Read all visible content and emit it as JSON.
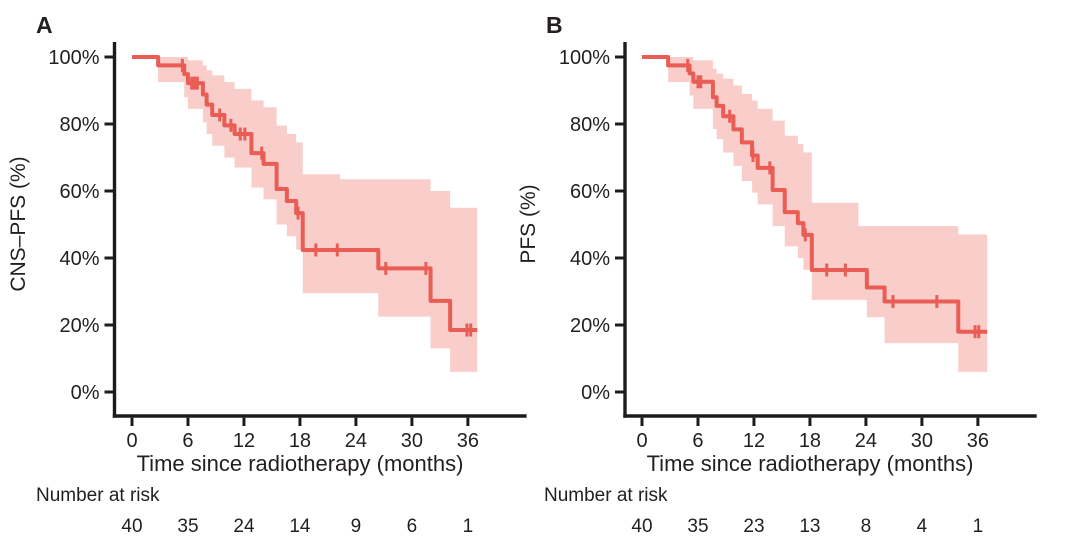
{
  "figure": {
    "background": "#ffffff",
    "description": "Two-panel Kaplan-Meier survival figure with 95% confidence bands"
  },
  "colors": {
    "curve": "#e95d55",
    "ci_band": "#f9cdc9",
    "axis": "#1c1c1c",
    "text": "#231f20"
  },
  "chart_data": [
    {
      "type": "line",
      "subtype": "kaplan-meier-step",
      "panel": "A",
      "ylabel": "CNS–PFS (%)",
      "xlabel": "Time since radiotherapy (months)",
      "x_tick_values": [
        0,
        6,
        12,
        18,
        24,
        30,
        36
      ],
      "x_tick_labels": [
        "0",
        "6",
        "12",
        "18",
        "24",
        "30",
        "36"
      ],
      "y_tick_values": [
        0,
        20,
        40,
        60,
        80,
        100
      ],
      "y_tick_labels": [
        "0%",
        "20%",
        "40%",
        "60%",
        "80%",
        "100%"
      ],
      "xlim": [
        0,
        42
      ],
      "ylim": [
        0,
        100
      ],
      "grid": false,
      "legend": "none",
      "steps": [
        [
          0,
          100
        ],
        [
          2.8,
          97.5
        ],
        [
          5.6,
          94.9
        ],
        [
          6.0,
          92.2
        ],
        [
          7.6,
          88.8
        ],
        [
          8.0,
          85.8
        ],
        [
          8.6,
          82.7
        ],
        [
          9.9,
          79.6
        ],
        [
          11.0,
          77.0
        ],
        [
          12.8,
          71.3
        ],
        [
          14.1,
          68.1
        ],
        [
          15.5,
          60.6
        ],
        [
          16.6,
          57.0
        ],
        [
          17.6,
          53.4
        ],
        [
          18.3,
          42.4
        ],
        [
          26.4,
          36.9
        ],
        [
          32.0,
          27.2
        ],
        [
          34.1,
          18.5
        ]
      ],
      "end_time": 37.0,
      "censors": [
        [
          5.4,
          97.5
        ],
        [
          6.4,
          92.2
        ],
        [
          6.7,
          92.2
        ],
        [
          7.0,
          92.2
        ],
        [
          9.4,
          82.7
        ],
        [
          10.6,
          79.6
        ],
        [
          11.6,
          77.0
        ],
        [
          12.1,
          77.0
        ],
        [
          13.9,
          71.3
        ],
        [
          17.8,
          53.4
        ],
        [
          19.7,
          42.4
        ],
        [
          22.0,
          42.4
        ],
        [
          27.2,
          36.9
        ],
        [
          31.5,
          36.9
        ],
        [
          35.9,
          18.5
        ],
        [
          36.3,
          18.5
        ]
      ],
      "ci": [
        [
          2.8,
          92.5,
          100
        ],
        [
          5.6,
          88.0,
          100
        ],
        [
          6.0,
          84.5,
          99.0
        ],
        [
          7.6,
          80.5,
          97.5
        ],
        [
          8.0,
          77.0,
          96.0
        ],
        [
          8.6,
          73.5,
          94.5
        ],
        [
          9.9,
          70.0,
          92.5
        ],
        [
          11.0,
          67.0,
          90.5
        ],
        [
          12.8,
          61.0,
          87.0
        ],
        [
          14.1,
          57.5,
          85.0
        ],
        [
          15.5,
          50.0,
          79.5
        ],
        [
          16.6,
          46.5,
          77.0
        ],
        [
          17.6,
          42.5,
          74.5
        ],
        [
          18.3,
          29.5,
          65.0
        ],
        [
          22.3,
          29.5,
          63.5
        ],
        [
          26.4,
          22.5,
          63.5
        ],
        [
          32.0,
          13.0,
          60.0
        ],
        [
          34.1,
          6.0,
          55.0
        ]
      ],
      "number_at_risk": {
        "label": "Number at risk",
        "times": [
          0,
          6,
          12,
          18,
          24,
          30,
          36
        ],
        "values": [
          "40",
          "35",
          "24",
          "14",
          "9",
          "6",
          "1"
        ]
      }
    },
    {
      "type": "line",
      "subtype": "kaplan-meier-step",
      "panel": "B",
      "ylabel": "PFS (%)",
      "xlabel": "Time since radiotherapy (months)",
      "x_tick_values": [
        0,
        6,
        12,
        18,
        24,
        30,
        36
      ],
      "x_tick_labels": [
        "0",
        "6",
        "12",
        "18",
        "24",
        "30",
        "36"
      ],
      "y_tick_values": [
        0,
        20,
        40,
        60,
        80,
        100
      ],
      "y_tick_labels": [
        "0%",
        "20%",
        "40%",
        "60%",
        "80%",
        "100%"
      ],
      "xlim": [
        0,
        42
      ],
      "ylim": [
        0,
        100
      ],
      "grid": false,
      "legend": "none",
      "steps": [
        [
          0,
          100
        ],
        [
          2.8,
          97.5
        ],
        [
          5.1,
          95.1
        ],
        [
          5.5,
          92.6
        ],
        [
          7.6,
          88.0
        ],
        [
          8.0,
          85.4
        ],
        [
          8.7,
          82.3
        ],
        [
          9.8,
          78.4
        ],
        [
          10.7,
          74.5
        ],
        [
          11.8,
          70.6
        ],
        [
          12.4,
          66.9
        ],
        [
          14.0,
          60.3
        ],
        [
          15.3,
          53.7
        ],
        [
          16.7,
          50.4
        ],
        [
          17.3,
          46.9
        ],
        [
          18.2,
          36.4
        ],
        [
          24.1,
          31.2
        ],
        [
          26.0,
          27.0
        ],
        [
          33.9,
          18.0
        ]
      ],
      "end_time": 37.0,
      "censors": [
        [
          4.9,
          97.5
        ],
        [
          6.0,
          92.6
        ],
        [
          6.3,
          92.6
        ],
        [
          9.4,
          82.3
        ],
        [
          11.9,
          70.6
        ],
        [
          13.7,
          66.9
        ],
        [
          17.5,
          46.9
        ],
        [
          19.8,
          36.4
        ],
        [
          21.8,
          36.4
        ],
        [
          26.9,
          27.0
        ],
        [
          31.6,
          27.0
        ],
        [
          35.7,
          18.0
        ],
        [
          36.1,
          18.0
        ]
      ],
      "ci": [
        [
          2.8,
          92.5,
          100
        ],
        [
          5.1,
          88.5,
          100
        ],
        [
          5.5,
          84.5,
          99.0
        ],
        [
          7.6,
          78.5,
          96.5
        ],
        [
          8.0,
          75.5,
          95.0
        ],
        [
          8.7,
          71.5,
          93.5
        ],
        [
          9.8,
          67.5,
          91.5
        ],
        [
          10.7,
          63.0,
          89.0
        ],
        [
          11.8,
          59.5,
          87.0
        ],
        [
          12.4,
          56.0,
          84.5
        ],
        [
          14.0,
          49.5,
          81.0
        ],
        [
          15.3,
          43.5,
          76.5
        ],
        [
          16.7,
          40.0,
          74.0
        ],
        [
          17.3,
          36.5,
          71.5
        ],
        [
          18.2,
          27.5,
          56.5
        ],
        [
          23.2,
          27.5,
          49.5
        ],
        [
          24.1,
          22.3,
          49.5
        ],
        [
          26.0,
          14.6,
          49.5
        ],
        [
          33.9,
          6.0,
          47.0
        ]
      ],
      "number_at_risk": {
        "label": "Number at risk",
        "times": [
          0,
          6,
          12,
          18,
          24,
          30,
          36
        ],
        "values": [
          "40",
          "35",
          "23",
          "13",
          "8",
          "4",
          "1"
        ]
      }
    }
  ]
}
